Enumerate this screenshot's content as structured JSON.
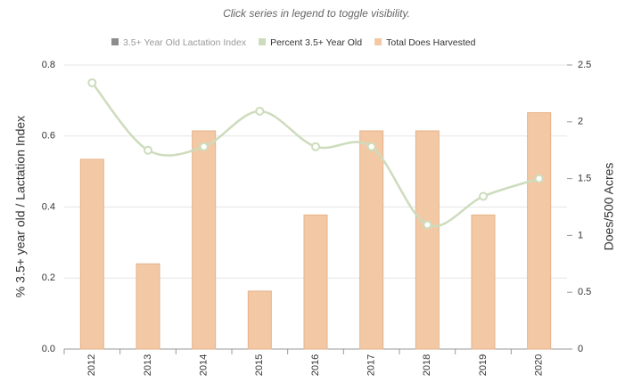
{
  "chart_data": {
    "type": "bar-line",
    "subtitle": "Click series in legend to toggle visibility.",
    "categories": [
      "2012",
      "2013",
      "2014",
      "2015",
      "2016",
      "2017",
      "2018",
      "2019",
      "2020"
    ],
    "series": [
      {
        "name": "3.5+ Year Old Lactation Index",
        "color": "#8c8c8c",
        "type": "line",
        "axis": "y",
        "visible": false,
        "values": [
          null,
          null,
          null,
          null,
          null,
          null,
          null,
          null,
          null
        ]
      },
      {
        "name": "Percent 3.5+ Year Old",
        "color": "#cddcbc",
        "type": "line",
        "axis": "y",
        "visible": true,
        "values": [
          0.75,
          0.56,
          0.57,
          0.67,
          0.57,
          0.57,
          0.35,
          0.43,
          0.48
        ]
      },
      {
        "name": "Total Does Harvested",
        "color": "#f3c9a5",
        "type": "bar",
        "axis": "y2",
        "visible": true,
        "values": [
          1.67,
          0.75,
          1.92,
          0.51,
          1.18,
          1.92,
          1.92,
          1.18,
          2.08
        ]
      }
    ],
    "ylabel": "% 3.5+ year old / Lactation Index",
    "y2label": "Does/500 Acres",
    "ylim": [
      0,
      0.8
    ],
    "yticks": [
      {
        "value": 0,
        "label": "0.0"
      },
      0.2,
      0.4,
      0.6,
      0.8
    ],
    "y2lim": [
      0,
      2.5
    ],
    "y2ticks": [
      0,
      0.5,
      1,
      1.5,
      2,
      2.5
    ],
    "grid": true
  }
}
